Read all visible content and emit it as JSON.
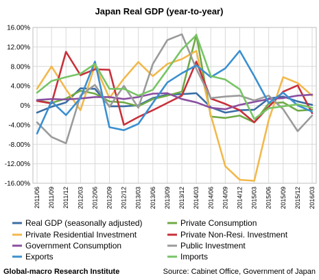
{
  "chart_data": {
    "type": "line",
    "title": "Japan Real GDP (year-to-year)",
    "xlabel": "",
    "ylabel": "",
    "ylim": [
      -16,
      16
    ],
    "yticks": [
      "16.00%",
      "12.00%",
      "8.00%",
      "4.00%",
      "0%",
      "-4.00%",
      "-8.00%",
      "-12.00%",
      "-16.00%"
    ],
    "x": [
      "2011/06",
      "2011/09",
      "2011/12",
      "2012/03",
      "2012/06",
      "2012/09",
      "2012/12",
      "2013/03",
      "2013/06",
      "2013/09",
      "2013/12",
      "2014/03",
      "2014/06",
      "2014/09",
      "2014/12",
      "2015/03",
      "2015/06",
      "2015/09",
      "2015/12",
      "2016/03"
    ],
    "grid": true,
    "legend_position": "bottom",
    "series": [
      {
        "name": "Real GDP (seasonally adjusted)",
        "color": "#3a6ea5",
        "values": [
          -1.5,
          -0.3,
          0.6,
          3.5,
          3.4,
          -0.2,
          -0.2,
          0.0,
          1.5,
          2.2,
          2.3,
          2.5,
          -0.4,
          -1.5,
          -1.0,
          -0.9,
          1.4,
          1.8,
          0.8,
          0.1
        ]
      },
      {
        "name": "Private Consumption",
        "color": "#6faa45",
        "values": [
          1.0,
          0.5,
          1.4,
          3.0,
          2.4,
          0.8,
          0.6,
          -0.2,
          1.3,
          2.0,
          2.8,
          14.5,
          -2.3,
          -2.6,
          -2.1,
          -3.5,
          0.4,
          0.6,
          -1.1,
          -0.9
        ]
      },
      {
        "name": "Private Residential Investment",
        "color": "#f2b84b",
        "values": [
          3.4,
          8.0,
          3.3,
          -1.0,
          8.2,
          1.5,
          5.5,
          8.9,
          6.0,
          8.5,
          9.5,
          11.2,
          -2.0,
          -12.5,
          -15.3,
          -15.5,
          -3.0,
          5.8,
          4.6,
          2.0
        ]
      },
      {
        "name": "Private Non-Resi. Investment",
        "color": "#c8303a",
        "values": [
          0.9,
          0.4,
          11.0,
          6.2,
          7.4,
          7.3,
          -4.0,
          -2.4,
          -1.0,
          0.5,
          2.0,
          9.0,
          1.4,
          0.3,
          -1.0,
          -3.5,
          -0.3,
          2.8,
          4.1,
          -1.6
        ]
      },
      {
        "name": "Government Consumption",
        "color": "#8a4fa0",
        "values": [
          1.1,
          1.3,
          1.2,
          1.4,
          1.7,
          1.7,
          1.3,
          1.7,
          2.4,
          2.5,
          1.3,
          0.6,
          -0.5,
          -0.8,
          0.1,
          0.7,
          1.3,
          1.5,
          2.0,
          2.2
        ]
      },
      {
        "name": "Public Investment",
        "color": "#9a9a9a",
        "values": [
          -3.5,
          -6.5,
          -7.8,
          2.0,
          4.2,
          -0.3,
          4.0,
          -0.5,
          8.5,
          13.4,
          14.6,
          7.5,
          1.5,
          1.8,
          2.0,
          1.0,
          2.0,
          -0.8,
          -5.3,
          -2.1
        ]
      },
      {
        "name": "Exports",
        "color": "#3a8fd0",
        "values": [
          -5.8,
          0.8,
          -2.0,
          1.5,
          9.0,
          -4.5,
          -5.1,
          -3.8,
          0.5,
          4.7,
          6.6,
          8.2,
          5.8,
          7.6,
          11.2,
          6.0,
          0.5,
          2.6,
          0.0,
          -1.3
        ]
      },
      {
        "name": "Imports",
        "color": "#77c465",
        "values": [
          2.6,
          5.0,
          5.8,
          6.5,
          8.5,
          3.4,
          3.4,
          2.0,
          3.2,
          7.3,
          11.5,
          14.4,
          6.0,
          5.3,
          3.3,
          -2.8,
          -0.6,
          -0.2,
          0.2,
          -0.5
        ]
      }
    ]
  },
  "footer": {
    "left": "Global-macro Research Institute",
    "right": "Source: Cabinet Office, Government of Japan"
  }
}
